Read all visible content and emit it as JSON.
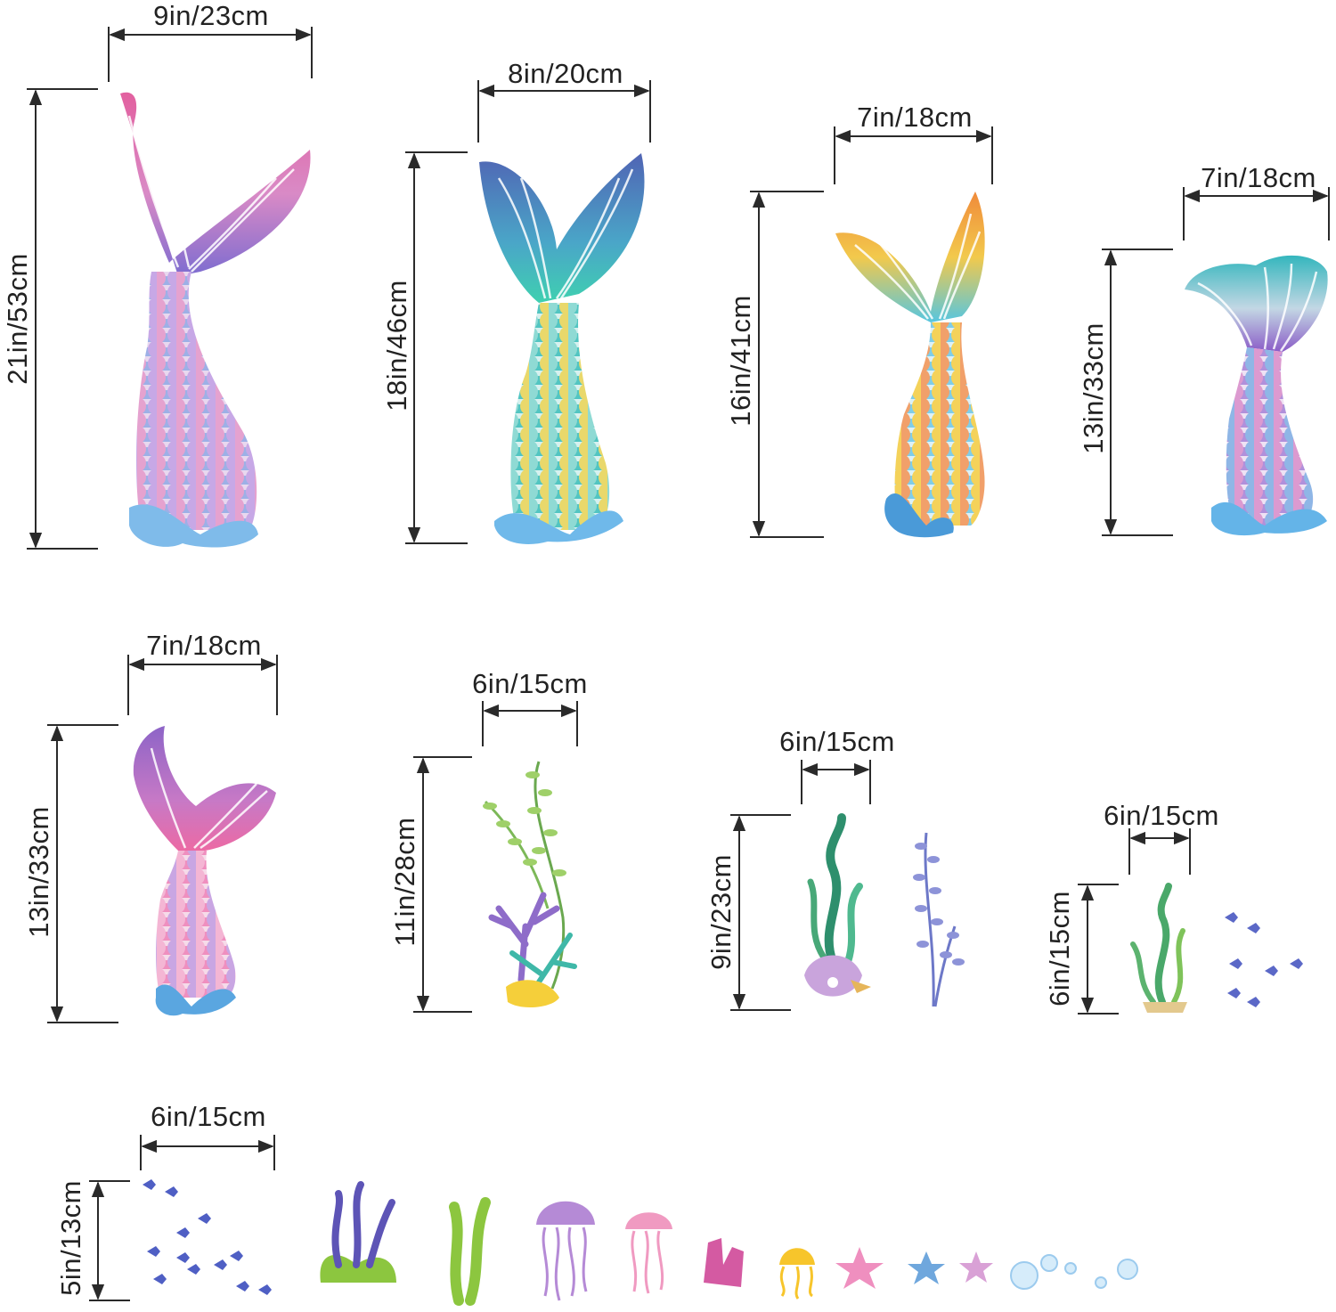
{
  "product": "mermaid tail wall decals",
  "labels": {
    "tail1_w": "9in/23cm",
    "tail1_h": "21in/53cm",
    "tail2_w": "8in/20cm",
    "tail2_h": "18in/46cm",
    "tail3_w": "7in/18cm",
    "tail3_h": "16in/41cm",
    "tail4_w": "7in/18cm",
    "tail4_h": "13in/33cm",
    "tail5_w": "7in/18cm",
    "tail5_h": "13in/33cm",
    "seaweed1_w": "6in/15cm",
    "seaweed1_h": "11in/28cm",
    "seaweed2_w": "6in/15cm",
    "seaweed2_h": "9in/23cm",
    "seaweed3_w": "6in/15cm",
    "seaweed3_h": "6in/15cm",
    "fish_w": "6in/15cm",
    "fish_h": "5in/13cm"
  },
  "palette": {
    "pink": "#e86aa8",
    "purple": "#8e6cc9",
    "blue": "#5b7fc4",
    "teal": "#3fbfb8",
    "orange": "#f39a3c",
    "yellow": "#f5d14a",
    "green": "#4faa6a",
    "lime": "#8cc63f",
    "water": "#6fb6e6",
    "dim": "#2a2a2a"
  },
  "icons": [
    "mermaid-tail-icon",
    "seaweed-icon",
    "coral-icon",
    "shell-icon",
    "fish-icon",
    "jellyfish-icon",
    "starfish-icon",
    "bubble-icon"
  ]
}
